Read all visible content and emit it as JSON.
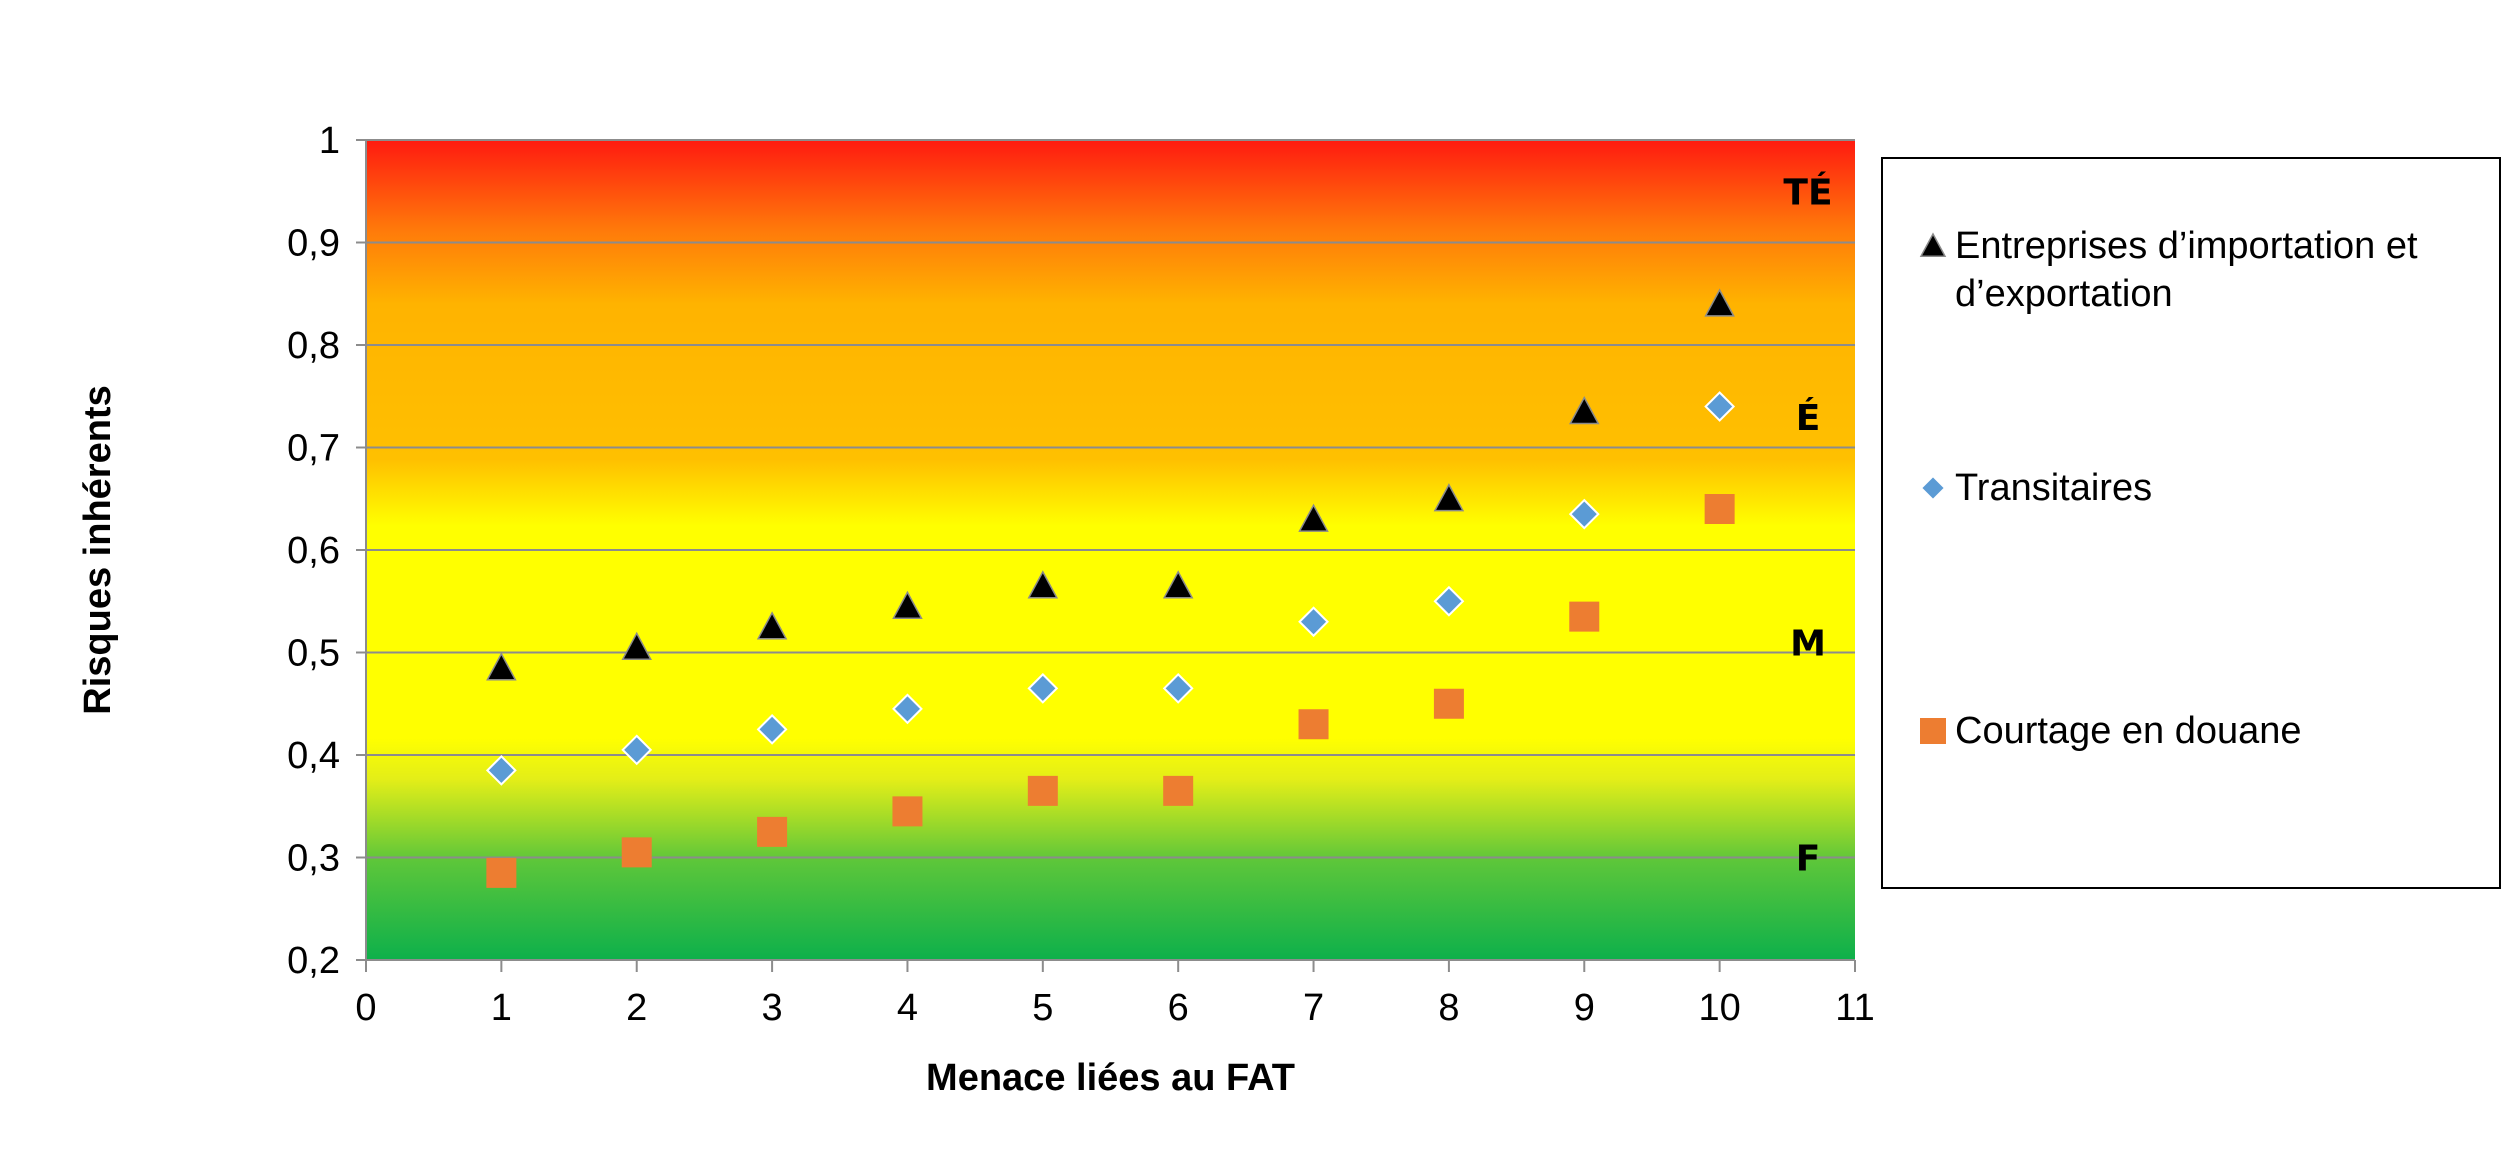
{
  "chart_data": {
    "type": "scatter",
    "xlabel": "Menace liées au FAT",
    "ylabel": "Risques inhérents",
    "xlim": [
      0,
      11
    ],
    "ylim": [
      0.2,
      1
    ],
    "x_ticks": [
      "0",
      "1",
      "2",
      "3",
      "4",
      "5",
      "6",
      "7",
      "8",
      "9",
      "10",
      "11"
    ],
    "y_ticks": [
      "0,2",
      "0,3",
      "0,4",
      "0,5",
      "0,6",
      "0,7",
      "0,8",
      "0,9",
      "1"
    ],
    "grid": true,
    "background": "gradient: green (low) → yellow → orange → red (high)",
    "zone_labels": [
      {
        "text": "TÉ",
        "y": 0.95
      },
      {
        "text": "É",
        "y": 0.73
      },
      {
        "text": "M",
        "y": 0.51
      },
      {
        "text": "F",
        "y": 0.3
      }
    ],
    "legend_position": "right",
    "series": [
      {
        "name": "Entreprises d’importation et d’exportation",
        "legend_lines": [
          "Entreprises d’importation et",
          "d’exportation"
        ],
        "marker": "triangle",
        "color": "#000000",
        "x": [
          1,
          2,
          3,
          4,
          5,
          6,
          7,
          8,
          9,
          10
        ],
        "y": [
          0.485,
          0.505,
          0.525,
          0.545,
          0.565,
          0.565,
          0.63,
          0.65,
          0.735,
          0.84
        ]
      },
      {
        "name": "Transitaires",
        "legend_lines": [
          "Transitaires"
        ],
        "marker": "diamond",
        "color": "#5B9BD5",
        "x": [
          1,
          2,
          3,
          4,
          5,
          6,
          7,
          8,
          9,
          10
        ],
        "y": [
          0.385,
          0.405,
          0.425,
          0.445,
          0.465,
          0.465,
          0.53,
          0.55,
          0.635,
          0.74
        ]
      },
      {
        "name": "Courtage en douane",
        "legend_lines": [
          "Courtage en douane"
        ],
        "marker": "square",
        "color": "#ED7D31",
        "x": [
          1,
          2,
          3,
          4,
          5,
          6,
          7,
          8,
          9,
          10
        ],
        "y": [
          0.285,
          0.305,
          0.325,
          0.345,
          0.365,
          0.365,
          0.43,
          0.45,
          0.535,
          0.64
        ]
      }
    ]
  }
}
